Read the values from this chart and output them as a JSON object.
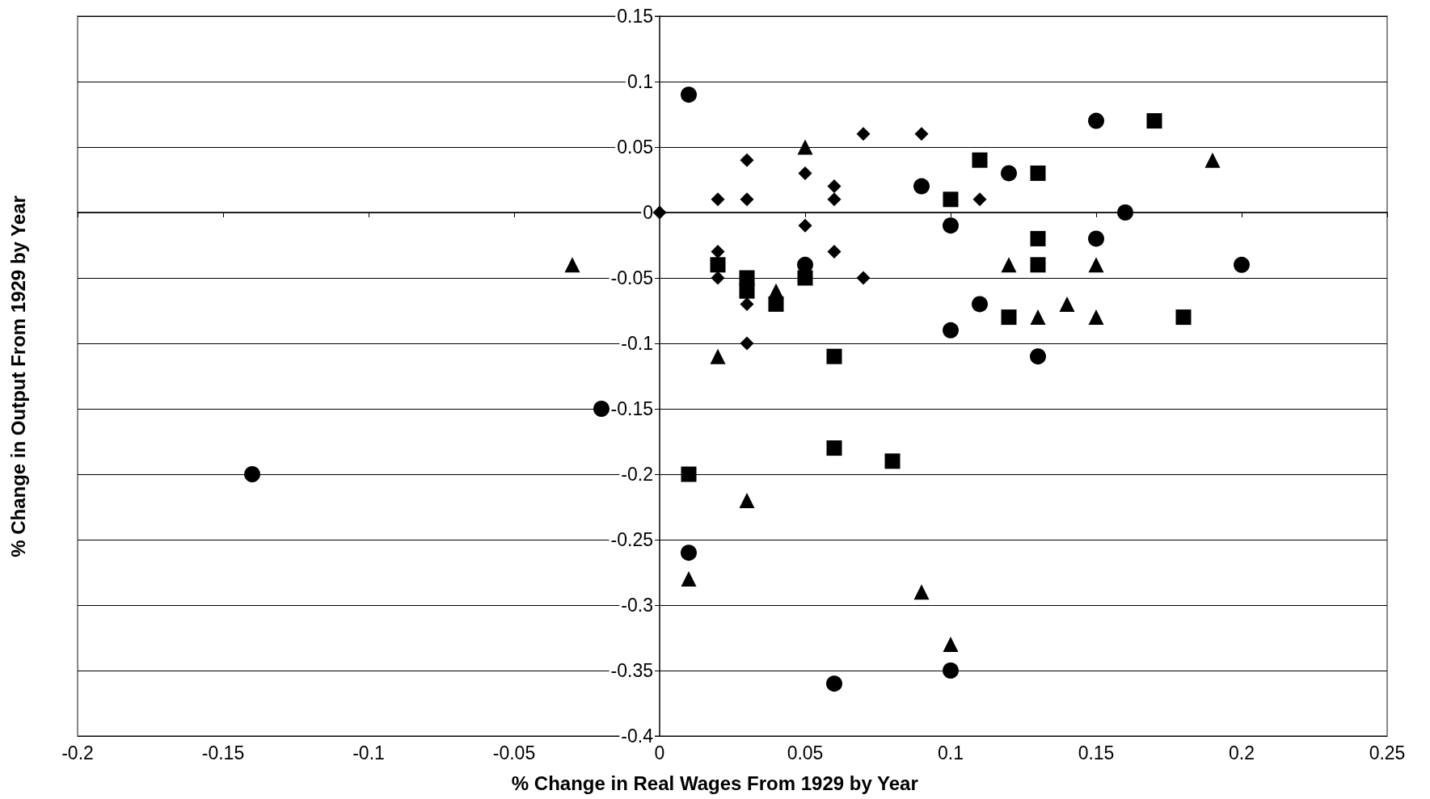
{
  "chart_data": {
    "type": "scatter",
    "xlabel": "% Change in Real Wages From 1929 by Year",
    "ylabel": "% Change in Output From 1929 by Year",
    "xlim": [
      -0.2,
      0.25
    ],
    "xticks": [
      -0.2,
      -0.15,
      -0.1,
      -0.05,
      0,
      0.05,
      0.1,
      0.15,
      0.2,
      0.25
    ],
    "ylim": [
      -0.4,
      0.15
    ],
    "yticks": [
      -0.4,
      -0.35,
      -0.3,
      -0.25,
      -0.2,
      -0.15,
      -0.1,
      -0.05,
      0,
      0.05,
      0.1,
      0.15
    ],
    "grid": "y",
    "series": [
      {
        "marker": "circle",
        "color": "#000000",
        "x": [
          0.01,
          0.15,
          0.09,
          0.12,
          0.16,
          0.1,
          0.15,
          0.05,
          0.2,
          0.11,
          0.1,
          0.13,
          -0.02,
          -0.14,
          0.01,
          0.1,
          0.06
        ],
        "values": [
          0.09,
          0.07,
          0.02,
          0.03,
          0,
          -0.01,
          -0.02,
          -0.04,
          -0.04,
          -0.07,
          -0.09,
          -0.11,
          -0.15,
          -0.2,
          -0.26,
          -0.35,
          -0.36
        ]
      },
      {
        "marker": "square",
        "color": "#000000",
        "x": [
          0.17,
          0.11,
          0.13,
          0.1,
          0.13,
          0.02,
          0.13,
          0.03,
          0.03,
          0.05,
          0.04,
          0.12,
          0.18,
          0.06,
          0.06,
          0.08,
          0.01
        ],
        "values": [
          0.07,
          0.04,
          0.03,
          0.01,
          -0.02,
          -0.04,
          -0.04,
          -0.05,
          -0.06,
          -0.05,
          -0.07,
          -0.08,
          -0.08,
          -0.11,
          -0.18,
          -0.19,
          -0.2
        ]
      },
      {
        "marker": "triangle",
        "color": "#000000",
        "x": [
          0.05,
          0.19,
          -0.03,
          0.12,
          0.15,
          0.04,
          0.14,
          0.13,
          0.15,
          0.02,
          0.03,
          0.01,
          0.09,
          0.1
        ],
        "values": [
          0.05,
          0.04,
          -0.04,
          -0.04,
          -0.04,
          -0.06,
          -0.07,
          -0.08,
          -0.08,
          -0.11,
          -0.22,
          -0.28,
          -0.29,
          -0.33
        ]
      },
      {
        "marker": "diamond",
        "color": "#000000",
        "x": [
          0,
          0.02,
          0.03,
          0.03,
          0.05,
          0.05,
          0.06,
          0.06,
          0.07,
          0.09,
          0.11,
          0.02,
          0.06,
          0.02,
          0.07,
          0.03,
          0.03
        ],
        "values": [
          0,
          0.01,
          0.01,
          0.04,
          0.03,
          -0.01,
          0.02,
          0.01,
          0.06,
          0.06,
          0.01,
          -0.03,
          -0.03,
          -0.05,
          -0.05,
          -0.07,
          -0.1
        ]
      }
    ]
  }
}
